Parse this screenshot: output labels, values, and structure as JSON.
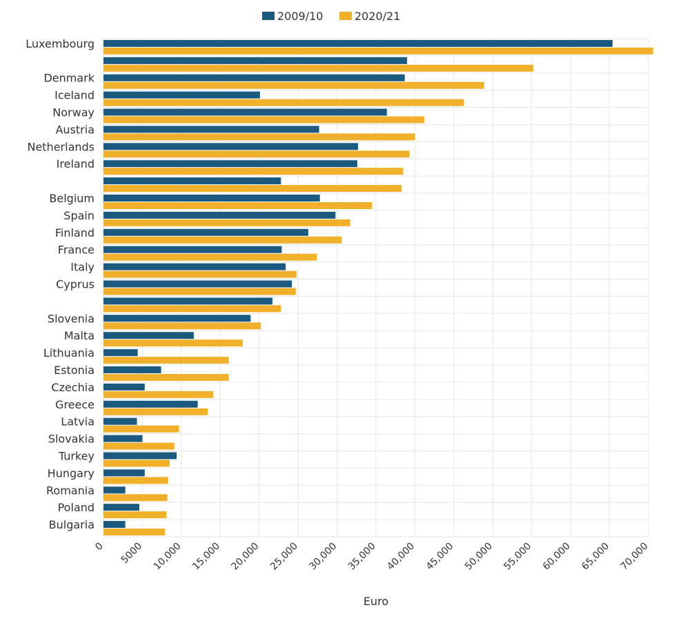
{
  "chart_data": {
    "type": "bar",
    "orientation": "horizontal",
    "title": "",
    "xlabel": "Euro",
    "ylabel": "",
    "xlim": [
      0,
      70000
    ],
    "x_ticks": [
      0,
      5000,
      10000,
      15000,
      20000,
      25000,
      30000,
      35000,
      40000,
      45000,
      50000,
      55000,
      60000,
      65000,
      70000
    ],
    "x_tick_labels": [
      "0",
      "5000",
      "10,000",
      "15,000",
      "20,000",
      "25,000",
      "30,000",
      "35,000",
      "40,000",
      "45,000",
      "50,000",
      "55,000",
      "60,000",
      "65,000",
      "70,000"
    ],
    "grid": true,
    "legend_position": "top-center",
    "categories": [
      "Luxembourg",
      "",
      "Denmark",
      "Iceland",
      "Norway",
      "Austria",
      "Netherlands",
      "Ireland",
      "",
      "Belgium",
      "Spain",
      "Finland",
      "France",
      "Italy",
      "Cyprus",
      "",
      "Slovenia",
      "Malta",
      "Lithuania",
      "Estonia",
      "Czechia",
      "Greece",
      "Latvia",
      "Slovakia",
      "Turkey",
      "Hungary",
      "Romania",
      "Poland",
      "Bulgaria"
    ],
    "series": [
      {
        "name": "2009/10",
        "color": "#1b5a7e",
        "values": [
          65400,
          39000,
          38700,
          20100,
          36400,
          27700,
          32700,
          32600,
          22800,
          27800,
          29800,
          26300,
          22900,
          23400,
          24200,
          21700,
          18900,
          11600,
          4400,
          7400,
          5300,
          12100,
          4300,
          5000,
          9400,
          5300,
          2800,
          4600,
          2800
        ]
      },
      {
        "name": "2020/21",
        "color": "#f0b02b",
        "values": [
          70600,
          55200,
          48900,
          46300,
          41200,
          40000,
          39300,
          38500,
          38300,
          34500,
          31700,
          30600,
          27400,
          24800,
          24700,
          22800,
          20200,
          17900,
          16100,
          16100,
          14100,
          13400,
          9700,
          9100,
          8500,
          8300,
          8200,
          8100,
          7900
        ]
      }
    ]
  }
}
